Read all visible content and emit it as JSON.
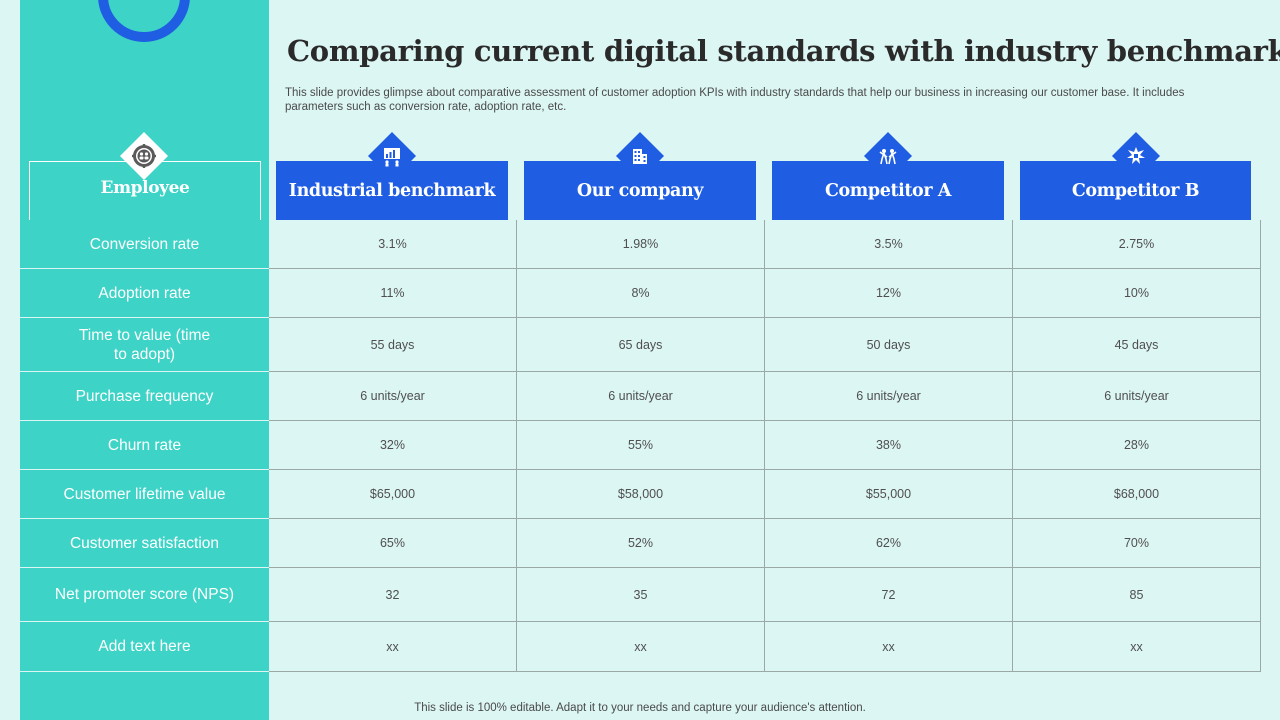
{
  "title": "Comparing current digital standards with industry benchmark",
  "description": "This slide provides glimpse about comparative assessment of customer adoption KPIs with industry standards that help our business in increasing our customer base. It includes parameters such as conversion rate, adoption rate, etc.",
  "table": {
    "row_header": "Employee",
    "columns": [
      "Industrial benchmark",
      "Our company",
      "Competitor A",
      "Competitor B"
    ],
    "column_icons": [
      "gear-people-icon",
      "presentation-chart-icon",
      "building-icon",
      "people-celebrate-icon",
      "trophy-burst-icon"
    ],
    "rows": [
      {
        "label": "Conversion rate",
        "values": [
          "3.1%",
          "1.98%",
          "3.5%",
          "2.75%"
        ]
      },
      {
        "label": "Adoption rate",
        "values": [
          "11%",
          "8%",
          "12%",
          "10%"
        ]
      },
      {
        "label": "Time to value (time\nto adopt)",
        "values": [
          "55 days",
          "65 days",
          "50 days",
          "45 days"
        ]
      },
      {
        "label": "Purchase frequency",
        "values": [
          "6 units/year",
          "6 units/year",
          "6 units/year",
          "6 units/year"
        ]
      },
      {
        "label": "Churn rate",
        "values": [
          "32%",
          "55%",
          "38%",
          "28%"
        ]
      },
      {
        "label": "Customer lifetime value",
        "values": [
          "$65,000",
          "$58,000",
          "$55,000",
          "$68,000"
        ]
      },
      {
        "label": "Customer satisfaction",
        "values": [
          "65%",
          "52%",
          "62%",
          "70%"
        ]
      },
      {
        "label": "Net promoter score (NPS)",
        "values": [
          "32",
          "35",
          "72",
          "85"
        ]
      },
      {
        "label": "Add text here",
        "values": [
          "xx",
          "xx",
          "xx",
          "xx"
        ]
      }
    ]
  },
  "footer": "This slide is 100% editable. Adapt it to your needs and capture your audience's attention.",
  "colors": {
    "accent_teal": "#3ed3c7",
    "accent_blue": "#1f5ee3",
    "background": "#dcf6f3"
  }
}
